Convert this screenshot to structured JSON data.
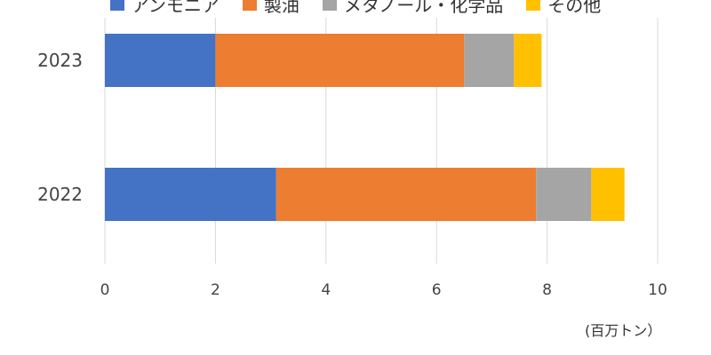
{
  "chart_data": {
    "type": "bar",
    "orientation": "horizontal",
    "stacked": true,
    "categories": [
      "2023",
      "2022"
    ],
    "series": [
      {
        "name": "アンモニア",
        "color": "#4472C4",
        "values": [
          2.0,
          3.1
        ]
      },
      {
        "name": "製油",
        "color": "#ED7D31",
        "values": [
          4.5,
          4.7
        ]
      },
      {
        "name": "メタノール・化学品",
        "color": "#A5A5A5",
        "values": [
          0.9,
          1.0
        ]
      },
      {
        "name": "その他",
        "color": "#FFC000",
        "values": [
          0.5,
          0.6
        ]
      }
    ],
    "xlim": [
      0,
      10
    ],
    "xticks": [
      "0",
      "2",
      "4",
      "6",
      "8",
      "10"
    ],
    "unit_label": "(百万トン）",
    "grid": "vertical",
    "legend_position": "top"
  }
}
